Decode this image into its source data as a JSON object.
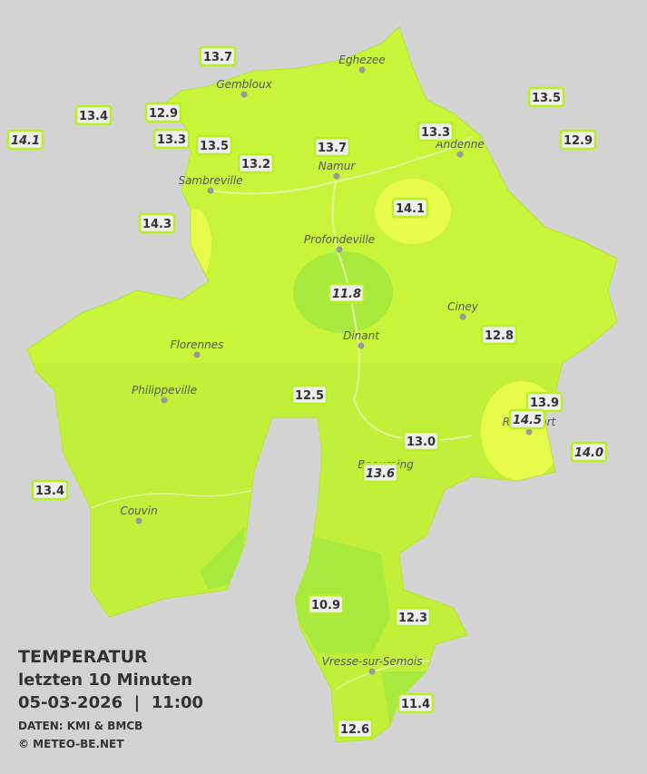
{
  "legend": {
    "title": "TEMPERATUR",
    "subtitle": "letzten 10 Minuten",
    "datetime": "05-03-2026  |  11:00",
    "source": "DATEN: KMI & BMCB",
    "copyright": "© METEO-BE.NET"
  },
  "cities": [
    {
      "name": "Eghezee"
    },
    {
      "name": "Gembloux"
    },
    {
      "name": "Andenne"
    },
    {
      "name": "Namur"
    },
    {
      "name": "Sambreville"
    },
    {
      "name": "Profondeville"
    },
    {
      "name": "Ciney"
    },
    {
      "name": "Dinant"
    },
    {
      "name": "Florennes"
    },
    {
      "name": "Philippeville"
    },
    {
      "name": "Rochefort"
    },
    {
      "name": "Beauraing"
    },
    {
      "name": "Couvin"
    },
    {
      "name": "Vresse-sur-Semois"
    }
  ],
  "stations": [
    {
      "label": "13.7",
      "italic": false
    },
    {
      "label": "13.4",
      "italic": false
    },
    {
      "label": "12.9",
      "italic": false
    },
    {
      "label": "14.1",
      "italic": true
    },
    {
      "label": "13.3",
      "italic": false
    },
    {
      "label": "13.5",
      "italic": false
    },
    {
      "label": "13.2",
      "italic": false
    },
    {
      "label": "13.7",
      "italic": false
    },
    {
      "label": "13.3",
      "italic": false
    },
    {
      "label": "13.5",
      "italic": false
    },
    {
      "label": "12.9",
      "italic": false
    },
    {
      "label": "14.3",
      "italic": false
    },
    {
      "label": "14.1",
      "italic": false
    },
    {
      "label": "11.8",
      "italic": true
    },
    {
      "label": "12.8",
      "italic": false
    },
    {
      "label": "12.5",
      "italic": false
    },
    {
      "label": "13.9",
      "italic": false
    },
    {
      "label": "14.5",
      "italic": true
    },
    {
      "label": "14.0",
      "italic": true
    },
    {
      "label": "13.0",
      "italic": false
    },
    {
      "label": "13.6",
      "italic": true
    },
    {
      "label": "13.4",
      "italic": false
    },
    {
      "label": "10.9",
      "italic": false
    },
    {
      "label": "12.3",
      "italic": false
    },
    {
      "label": "11.4",
      "italic": false
    },
    {
      "label": "12.6",
      "italic": false
    }
  ]
}
